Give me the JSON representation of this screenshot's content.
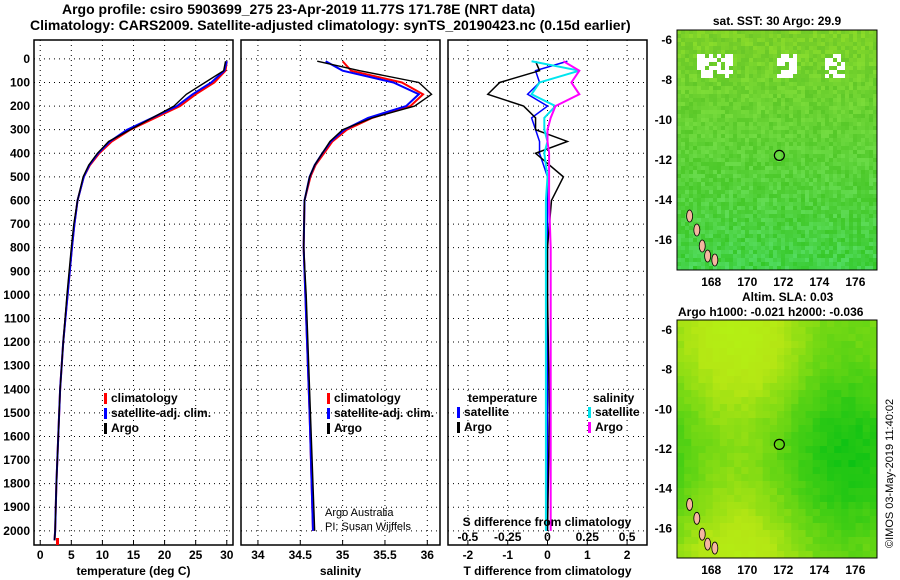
{
  "title_line1": "Argo profile: csiro 5903699_275 23-Apr-2019 11.77S 171.78E (NRT data)",
  "title_line2": "Climatology: CARS2009. Satellite-adjusted climatology: synTS_20190423.nc (0.15d earlier)",
  "credit": "©IMOS 03-May-2019 11:40:02",
  "argo_credit": [
    "Argo Australia",
    "PI: Susan Wijffels"
  ],
  "colors": {
    "climatology": "#ff0000",
    "satellite": "#0000ff",
    "argo": "#000000",
    "sal_satellite": "#00e5ee",
    "sal_argo": "#ff00ff"
  },
  "chart_data": [
    {
      "type": "line",
      "name": "temperature",
      "xlabel": "temperature (deg C)",
      "ylabel": "",
      "xlim": [
        -1,
        31
      ],
      "ylim": [
        2060,
        -80
      ],
      "xticks": [
        0,
        5,
        10,
        15,
        20,
        25,
        30
      ],
      "yticks": [
        0,
        100,
        200,
        300,
        400,
        500,
        600,
        700,
        800,
        900,
        1000,
        1100,
        1200,
        1300,
        1400,
        1500,
        1600,
        1700,
        1800,
        1900,
        2000
      ],
      "legend": [
        "climatology",
        "satellite-adj. clim.",
        "Argo"
      ],
      "legend_position": "lower-right",
      "depth": [
        10,
        50,
        100,
        150,
        200,
        250,
        300,
        350,
        400,
        450,
        500,
        600,
        700,
        800,
        1000,
        1200,
        1400,
        1600,
        1800,
        2000,
        2040
      ],
      "series": [
        {
          "name": "climatology",
          "values": [
            30,
            29.8,
            28,
            25,
            22.5,
            18.5,
            14.5,
            11.5,
            9.5,
            8,
            7,
            6,
            5.5,
            5.1,
            4.4,
            3.7,
            3.2,
            2.9,
            2.6,
            2.4,
            2.3
          ]
        },
        {
          "name": "satellite-adj. clim.",
          "values": [
            30,
            29.6,
            27.5,
            24.5,
            22,
            18,
            14,
            11.2,
            9.3,
            7.9,
            7,
            6,
            5.5,
            5.1,
            4.4,
            3.7,
            3.2,
            2.9,
            2.6,
            2.4,
            2.3
          ]
        },
        {
          "name": "Argo",
          "values": [
            29.8,
            29.5,
            26.5,
            23.5,
            21.5,
            18,
            14.5,
            11,
            9.2,
            7.8,
            6.9,
            6,
            5.4,
            5,
            4.3,
            3.7,
            3.2,
            2.9,
            2.6,
            2.4,
            2.3
          ]
        }
      ]
    },
    {
      "type": "line",
      "name": "salinity",
      "xlabel": "salinity",
      "xlim": [
        33.8,
        36.15
      ],
      "ylim": [
        2060,
        -80
      ],
      "xticks": [
        34,
        34.5,
        35,
        35.5,
        36
      ],
      "legend": [
        "climatology",
        "satellite-adj. clim.",
        "Argo"
      ],
      "legend_position": "lower-right",
      "depth": [
        10,
        50,
        100,
        150,
        200,
        250,
        300,
        350,
        400,
        450,
        500,
        600,
        800,
        1000,
        1500,
        2000
      ],
      "series": [
        {
          "name": "climatology",
          "values": [
            35.0,
            35.1,
            35.7,
            35.95,
            35.8,
            35.35,
            35.05,
            34.88,
            34.78,
            34.68,
            34.62,
            34.55,
            34.54,
            34.56,
            34.61,
            34.65
          ]
        },
        {
          "name": "satellite-adj. clim.",
          "values": [
            34.8,
            35.0,
            35.6,
            35.9,
            35.75,
            35.3,
            35.02,
            34.86,
            34.76,
            34.67,
            34.61,
            34.55,
            34.54,
            34.56,
            34.61,
            34.65
          ]
        },
        {
          "name": "Argo",
          "values": [
            34.7,
            35.2,
            35.9,
            36.05,
            35.85,
            35.35,
            35.0,
            34.85,
            34.76,
            34.67,
            34.61,
            34.55,
            34.54,
            34.57,
            34.62,
            34.67
          ]
        }
      ]
    },
    {
      "type": "line",
      "name": "difference",
      "xlabel": "T difference from climatology",
      "xlabel2": "S difference from climatology",
      "xlim": [
        -2.5,
        2.5
      ],
      "xlim2": [
        -0.625,
        0.625
      ],
      "ylim": [
        2060,
        -80
      ],
      "xticks": [
        -2,
        -1,
        0,
        1,
        2
      ],
      "xticks2": [
        "-0.5",
        "-0.25",
        "0",
        "0.25",
        "0.5"
      ],
      "legend_titles": [
        "temperature",
        "salinity"
      ],
      "legend": [
        "satellite",
        "Argo",
        "satellite",
        "Argo"
      ],
      "legend_position": "lower",
      "depth": [
        10,
        50,
        100,
        150,
        200,
        250,
        300,
        350,
        400,
        500,
        600,
        800,
        1000,
        1500,
        2000
      ],
      "series": [
        {
          "name": "T satellite",
          "values": [
            0.5,
            -0.3,
            -0.2,
            -0.5,
            0,
            -0.4,
            -0.3,
            -0.2,
            -0.2,
            0,
            0,
            0,
            0,
            0,
            0
          ]
        },
        {
          "name": "T Argo",
          "values": [
            -0.3,
            -0.2,
            -1.2,
            -1.5,
            -0.6,
            -0.3,
            -0.3,
            0.5,
            -0.3,
            0.4,
            0.1,
            0,
            0,
            0.05,
            0
          ]
        },
        {
          "name": "S satellite",
          "values": [
            -0.1,
            0.2,
            -0.05,
            -0.1,
            0.05,
            -0.02,
            -0.02,
            0,
            -0.02,
            0,
            -0.01,
            -0.01,
            -0.01,
            -0.01,
            -0.01
          ]
        },
        {
          "name": "S Argo",
          "values": [
            0.1,
            0.2,
            0.15,
            0.2,
            0.05,
            0.02,
            0,
            0,
            0.01,
            0.01,
            0.01,
            0.02,
            0.02,
            0.02,
            0.02
          ]
        }
      ]
    },
    {
      "type": "heatmap",
      "name": "sst-map",
      "title": "sat. SST: 30 Argo: 29.9",
      "xlim": [
        166.1,
        177.2
      ],
      "ylim": [
        -17.5,
        -5.5
      ],
      "xticks": [
        168,
        170,
        172,
        174,
        176
      ],
      "yticks": [
        -6,
        -8,
        -10,
        -12,
        -14,
        -16
      ],
      "marker": {
        "lon": 171.78,
        "lat": -11.77
      }
    },
    {
      "type": "heatmap",
      "name": "sla-map",
      "title": "Altim. SLA: 0.03",
      "subtitle": "Argo h1000: -0.021 h2000: -0.036",
      "xlim": [
        166.1,
        177.2
      ],
      "ylim": [
        -17.5,
        -5.5
      ],
      "xticks": [
        168,
        170,
        172,
        174,
        176
      ],
      "yticks": [
        -6,
        -8,
        -10,
        -12,
        -14,
        -16
      ],
      "marker": {
        "lon": 171.78,
        "lat": -11.77
      }
    }
  ]
}
